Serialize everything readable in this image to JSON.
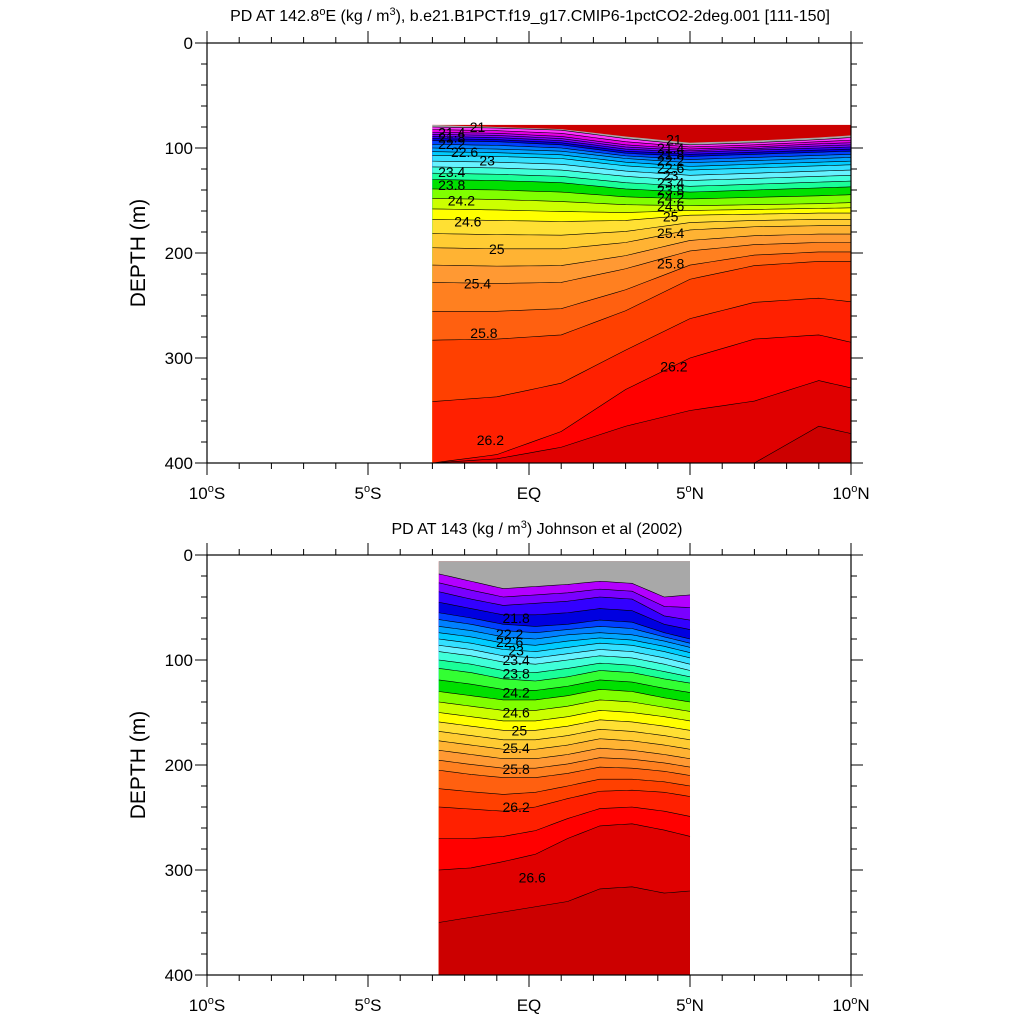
{
  "chart_data": [
    {
      "type": "contour",
      "title_prefix": "PD AT 142.8",
      "title_suffix": "E (kg / m",
      "title_tail": "), b.e21.B1PCT.f19_g17.CMIP6-1pctCO2-2deg.001 [111-150]",
      "ylabel": "DEPTH (m)",
      "xlabel": "",
      "xlim": [
        -10,
        10
      ],
      "ylim": [
        0,
        400
      ],
      "y_inverted": true,
      "x_ticks": [
        {
          "value": -10,
          "label": "10",
          "suffix": "S"
        },
        {
          "value": -5,
          "label": "5",
          "suffix": "S"
        },
        {
          "value": 0,
          "label": "EQ",
          "suffix": ""
        },
        {
          "value": 5,
          "label": "5",
          "suffix": "N"
        },
        {
          "value": 10,
          "label": "10",
          "suffix": "N"
        }
      ],
      "y_ticks": [
        0,
        100,
        200,
        300,
        400
      ],
      "data_x_range": [
        -3,
        10
      ],
      "mask_color": "#a8a8a8",
      "contour_levels": [
        21,
        21.2,
        21.4,
        21.6,
        21.8,
        22,
        22.2,
        22.4,
        22.6,
        22.8,
        23,
        23.2,
        23.4,
        23.6,
        23.8,
        24,
        24.2,
        24.4,
        24.6,
        24.8,
        25,
        25.2,
        25.4,
        25.6,
        25.8,
        26,
        26.2,
        26.4,
        26.6
      ],
      "profile_x": [
        -3,
        -1,
        1,
        3,
        5,
        7,
        9,
        10
      ],
      "surface_depth": [
        78,
        80,
        82,
        89,
        95,
        93,
        90,
        88
      ],
      "isopycnals": [
        {
          "level": 21.0,
          "depth": [
            80,
            81,
            83,
            91,
            97,
            95,
            92,
            90
          ]
        },
        {
          "level": 21.4,
          "depth": [
            85,
            86,
            89,
            97,
            101,
            99,
            96,
            95
          ]
        },
        {
          "level": 21.8,
          "depth": [
            89,
            90,
            93,
            101,
            104,
            102,
            100,
            99
          ]
        },
        {
          "level": 22.2,
          "depth": [
            93,
            94,
            97,
            105,
            108,
            106,
            104,
            103
          ]
        },
        {
          "level": 22.6,
          "depth": [
            100,
            101,
            103,
            110,
            114,
            112,
            110,
            109
          ]
        },
        {
          "level": 23.0,
          "depth": [
            107,
            108,
            110,
            117,
            121,
            119,
            117,
            116
          ]
        },
        {
          "level": 23.4,
          "depth": [
            118,
            119,
            121,
            127,
            131,
            129,
            127,
            126
          ]
        },
        {
          "level": 23.8,
          "depth": [
            130,
            131,
            133,
            139,
            142,
            140,
            138,
            137
          ]
        },
        {
          "level": 24.2,
          "depth": [
            148,
            149,
            151,
            154,
            155,
            154,
            153,
            152
          ]
        },
        {
          "level": 24.6,
          "depth": [
            168,
            169,
            170,
            169,
            164,
            163,
            162,
            162
          ]
        },
        {
          "level": 25.0,
          "depth": [
            195,
            196,
            196,
            190,
            178,
            175,
            174,
            174
          ]
        },
        {
          "level": 25.4,
          "depth": [
            228,
            229,
            228,
            215,
            198,
            192,
            190,
            190
          ]
        },
        {
          "level": 25.8,
          "depth": [
            283,
            282,
            278,
            255,
            225,
            212,
            208,
            208
          ]
        },
        {
          "level": 26.2,
          "depth": [
            400,
            392,
            370,
            330,
            300,
            282,
            278,
            285
          ]
        },
        {
          "level": 26.6,
          "depth": [
            400,
            400,
            400,
            400,
            400,
            400,
            365,
            372
          ]
        }
      ],
      "labels": [
        {
          "text": "21",
          "x": -1.6,
          "y": 80
        },
        {
          "text": "21.4",
          "x": -2.4,
          "y": 85
        },
        {
          "text": "21.8",
          "x": -2.4,
          "y": 90
        },
        {
          "text": "22.2",
          "x": -2.4,
          "y": 96
        },
        {
          "text": "22.6",
          "x": -2.0,
          "y": 104
        },
        {
          "text": "23",
          "x": -1.3,
          "y": 112
        },
        {
          "text": "23.4",
          "x": -2.4,
          "y": 123
        },
        {
          "text": "23.8",
          "x": -2.4,
          "y": 135
        },
        {
          "text": "24.2",
          "x": -2.1,
          "y": 150
        },
        {
          "text": "24.6",
          "x": -1.9,
          "y": 170
        },
        {
          "text": "25",
          "x": -1.0,
          "y": 196
        },
        {
          "text": "25.4",
          "x": -1.6,
          "y": 229
        },
        {
          "text": "25.8",
          "x": -1.4,
          "y": 276
        },
        {
          "text": "26.2",
          "x": -1.2,
          "y": 378
        },
        {
          "text": "21",
          "x": 4.5,
          "y": 92
        },
        {
          "text": "21.4",
          "x": 4.4,
          "y": 100
        },
        {
          "text": "21.8",
          "x": 4.4,
          "y": 106
        },
        {
          "text": "22.2",
          "x": 4.4,
          "y": 112
        },
        {
          "text": "22.6",
          "x": 4.4,
          "y": 119
        },
        {
          "text": "23",
          "x": 4.4,
          "y": 126
        },
        {
          "text": "23.4",
          "x": 4.4,
          "y": 133
        },
        {
          "text": "23.8",
          "x": 4.4,
          "y": 140
        },
        {
          "text": "24.2",
          "x": 4.4,
          "y": 147
        },
        {
          "text": "24.6",
          "x": 4.4,
          "y": 155
        },
        {
          "text": "25",
          "x": 4.4,
          "y": 165
        },
        {
          "text": "25.4",
          "x": 4.4,
          "y": 181
        },
        {
          "text": "25.8",
          "x": 4.4,
          "y": 210
        },
        {
          "text": "26.2",
          "x": 4.5,
          "y": 308
        }
      ]
    },
    {
      "type": "contour",
      "title": "PD AT 143 (kg / m",
      "title_tail": ") Johnson et al (2002)",
      "ylabel": "DEPTH (m)",
      "xlabel": "",
      "xlim": [
        -10,
        10
      ],
      "ylim": [
        0,
        400
      ],
      "y_inverted": true,
      "x_ticks": [
        {
          "value": -10,
          "label": "10",
          "suffix": "S"
        },
        {
          "value": -5,
          "label": "5",
          "suffix": "S"
        },
        {
          "value": 0,
          "label": "EQ",
          "suffix": ""
        },
        {
          "value": 5,
          "label": "5",
          "suffix": "N"
        },
        {
          "value": 10,
          "label": "10",
          "suffix": "N"
        }
      ],
      "y_ticks": [
        0,
        100,
        200,
        300,
        400
      ],
      "data_x_range": [
        -2.8,
        5
      ],
      "mask_color": "#a8a8a8",
      "contour_levels": [
        21,
        21.2,
        21.4,
        21.6,
        21.8,
        22,
        22.2,
        22.4,
        22.6,
        22.8,
        23,
        23.2,
        23.4,
        23.6,
        23.8,
        24,
        24.2,
        24.4,
        24.6,
        24.8,
        25,
        25.2,
        25.4,
        25.6,
        25.8,
        26,
        26.2,
        26.4,
        26.6,
        26.8
      ],
      "profile_x": [
        -2.8,
        -1.8,
        -0.8,
        0.2,
        1.2,
        2.2,
        3.2,
        4.2,
        5.0
      ],
      "surface_depth": [
        6,
        6,
        6,
        6,
        6,
        6,
        6,
        6,
        6
      ],
      "mask_top": [
        {
          "x": -0.8,
          "depth": 6
        },
        {
          "x": -0.6,
          "depth": 20
        },
        {
          "x": 0.5,
          "depth": 20
        },
        {
          "x": 1.0,
          "depth": 8
        },
        {
          "x": 3.2,
          "depth": 8
        },
        {
          "x": 3.8,
          "depth": 20
        },
        {
          "x": 4.0,
          "depth": 30
        },
        {
          "x": 5.0,
          "depth": 6
        }
      ],
      "isopycnals": [
        {
          "level": 21.4,
          "depth": [
            18,
            25,
            32,
            30,
            28,
            25,
            27,
            40,
            38
          ]
        },
        {
          "level": 21.8,
          "depth": [
            35,
            42,
            48,
            46,
            44,
            40,
            42,
            58,
            62
          ]
        },
        {
          "level": 22.2,
          "depth": [
            55,
            60,
            66,
            68,
            66,
            62,
            64,
            74,
            80
          ]
        },
        {
          "level": 22.6,
          "depth": [
            68,
            72,
            78,
            80,
            76,
            74,
            76,
            82,
            88
          ]
        },
        {
          "level": 23.0,
          "depth": [
            80,
            84,
            90,
            92,
            88,
            84,
            86,
            92,
            98
          ]
        },
        {
          "level": 23.4,
          "depth": [
            92,
            96,
            102,
            104,
            100,
            96,
            98,
            104,
            110
          ]
        },
        {
          "level": 23.8,
          "depth": [
            108,
            112,
            118,
            120,
            116,
            110,
            112,
            118,
            122
          ]
        },
        {
          "level": 24.2,
          "depth": [
            130,
            134,
            138,
            138,
            134,
            128,
            130,
            136,
            140
          ]
        },
        {
          "level": 24.6,
          "depth": [
            150,
            154,
            158,
            158,
            154,
            148,
            150,
            154,
            158
          ]
        },
        {
          "level": 25.0,
          "depth": [
            168,
            172,
            176,
            176,
            172,
            166,
            168,
            172,
            176
          ]
        },
        {
          "level": 25.4,
          "depth": [
            186,
            190,
            194,
            194,
            190,
            184,
            186,
            190,
            194
          ]
        },
        {
          "level": 25.8,
          "depth": [
            205,
            209,
            212,
            212,
            208,
            202,
            203,
            206,
            210
          ]
        },
        {
          "level": 26.2,
          "depth": [
            240,
            242,
            244,
            240,
            232,
            225,
            224,
            226,
            230
          ]
        },
        {
          "level": 26.6,
          "depth": [
            300,
            298,
            292,
            285,
            270,
            258,
            256,
            262,
            268
          ]
        },
        {
          "level": 26.8,
          "depth": [
            350,
            345,
            340,
            335,
            330,
            318,
            316,
            322,
            320
          ]
        }
      ],
      "labels": [
        {
          "text": "21.8",
          "x": -0.4,
          "y": 60
        },
        {
          "text": "22.2",
          "x": -0.6,
          "y": 75
        },
        {
          "text": "22.6",
          "x": -0.6,
          "y": 83
        },
        {
          "text": "23",
          "x": -0.4,
          "y": 91
        },
        {
          "text": "23.4",
          "x": -0.4,
          "y": 100
        },
        {
          "text": "23.8",
          "x": -0.4,
          "y": 113
        },
        {
          "text": "24.2",
          "x": -0.4,
          "y": 131
        },
        {
          "text": "24.6",
          "x": -0.4,
          "y": 150
        },
        {
          "text": "25",
          "x": -0.3,
          "y": 167
        },
        {
          "text": "25.4",
          "x": -0.4,
          "y": 184
        },
        {
          "text": "25.8",
          "x": -0.4,
          "y": 204
        },
        {
          "text": "26.2",
          "x": -0.4,
          "y": 240
        },
        {
          "text": "26.6",
          "x": 0.1,
          "y": 307
        }
      ]
    }
  ]
}
